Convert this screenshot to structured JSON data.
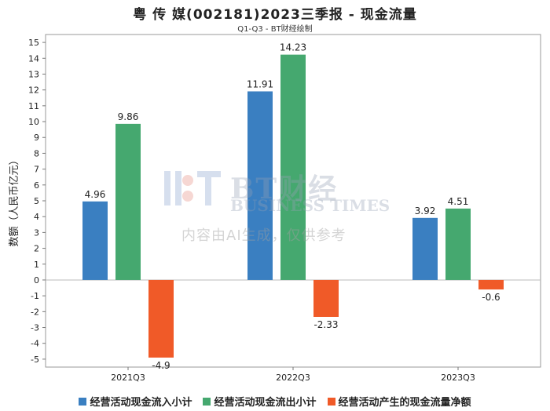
{
  "title": "粤 传 媒(002181)2023三季报 - 现金流量",
  "subtitle": "Q1-Q3 - BT财经绘制",
  "watermark": {
    "brand": "BT财经",
    "brand_en": "BUSINESS TIMES",
    "note": "内容由AI生成，仅供参考"
  },
  "chart_data": {
    "type": "bar",
    "categories": [
      "2021Q3",
      "2022Q3",
      "2023Q3"
    ],
    "series": [
      {
        "name": "经营活动现金流入小计",
        "color": "#3a7fc1",
        "values": [
          4.96,
          11.91,
          3.92
        ]
      },
      {
        "name": "经营活动现金流出小计",
        "color": "#45a86f",
        "values": [
          9.86,
          14.23,
          4.51
        ]
      },
      {
        "name": "经营活动产生的现金流量净额",
        "color": "#f05a28",
        "values": [
          -4.9,
          -2.33,
          -0.6
        ]
      }
    ],
    "ylabel": "数额（人民币亿元）",
    "ylim": [
      -5.5,
      15.5
    ],
    "yticks": [
      -5,
      -4,
      -3,
      -2,
      -1,
      0,
      1,
      2,
      3,
      4,
      5,
      6,
      7,
      8,
      9,
      10,
      11,
      12,
      13,
      14,
      15
    ],
    "legend_position": "bottom",
    "grid": false
  }
}
